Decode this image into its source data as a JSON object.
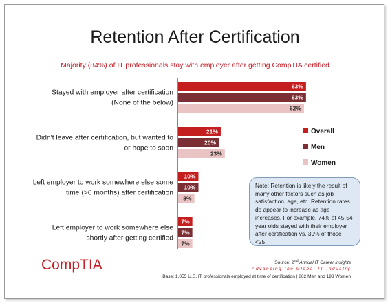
{
  "chart_data": {
    "type": "bar",
    "orientation": "horizontal",
    "title": "Retention After Certification",
    "subtitle": "Majority (84%) of IT professionals stay with employer after getting CompTIA certified",
    "categories": [
      [
        "Stayed with employer after certification",
        "(None of the below)"
      ],
      [
        "Didn't leave after certification, but wanted to",
        "or hope to soon"
      ],
      [
        "Left employer to work somewhere else some",
        "time (>6 months) after certification"
      ],
      [
        "Left employer to work somewhere else",
        "shortly after getting certified"
      ]
    ],
    "series": [
      {
        "name": "Overall",
        "color": "#c41e1e",
        "values": [
          63,
          21,
          10,
          7
        ],
        "labels": [
          "63%",
          "21%",
          "10%",
          "7%"
        ]
      },
      {
        "name": "Men",
        "color": "#7b2f34",
        "values": [
          63,
          20,
          10,
          7
        ],
        "labels": [
          "63%",
          "20%",
          "10%",
          "7%"
        ]
      },
      {
        "name": "Women",
        "color": "#eac4c4",
        "values": [
          62,
          23,
          8,
          7
        ],
        "labels": [
          "62%",
          "23%",
          "8%",
          "7%"
        ]
      }
    ],
    "legend_position": "right",
    "grid": false
  },
  "note": "Note: Retention is likely the result of many other factors such as job satisfaction, age, etc. Retention rates do appear to increase as age increases. For example, 74% of 45-54 year olds stayed with their employer after certification vs. 39% of those <25.",
  "logo": {
    "comp": "Comp",
    "tia": "TIA"
  },
  "footer": {
    "source_prefix": "Source: 2",
    "source_sup": "nd",
    "source_suffix": " Annual IT Career Insights",
    "tagline": "Advancing the Global IT Industry",
    "base": "Base: 1,055 U.S. IT professionals employed at time of certification | 862 Men and 193 Women"
  }
}
